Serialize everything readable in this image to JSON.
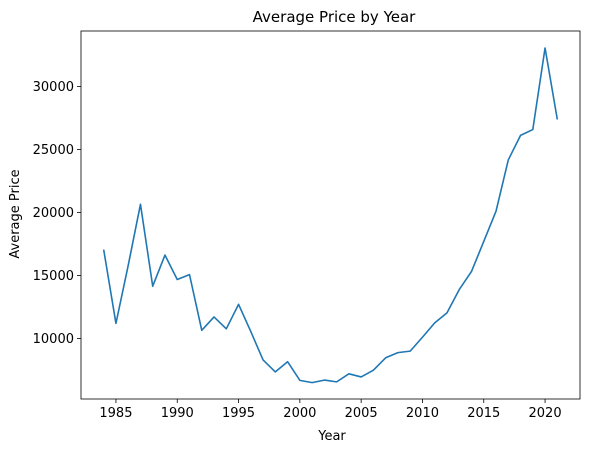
{
  "chart_data": {
    "type": "line",
    "title": "Average Price by Year",
    "xlabel": "Year",
    "ylabel": "Average Price",
    "xlim": [
      1982.15,
      2022.85
    ],
    "ylim": [
      5200,
      34400
    ],
    "xticks": [
      1985,
      1990,
      1995,
      2000,
      2005,
      2010,
      2015,
      2020
    ],
    "yticks": [
      10000,
      15000,
      20000,
      25000,
      30000
    ],
    "grid": false,
    "legend": "none",
    "line_color": "#1f77b4",
    "series": [
      {
        "x": [
          1984,
          1985,
          1986,
          1987,
          1988,
          1989,
          1990,
          1991,
          1992,
          1993,
          1994,
          1995,
          1996,
          1997,
          1998,
          1999,
          2000,
          2001,
          2002,
          2003,
          2004,
          2005,
          2006,
          2007,
          2008,
          2009,
          2010,
          2011,
          2012,
          2013,
          2014,
          2015,
          2016,
          2017,
          2018,
          2019,
          2020,
          2021
        ],
        "values": [
          17050,
          11200,
          15800,
          20650,
          14150,
          16620,
          14680,
          15070,
          10650,
          11710,
          10770,
          12710,
          10550,
          8300,
          7350,
          8160,
          6680,
          6500,
          6700,
          6560,
          7200,
          6950,
          7490,
          8470,
          8880,
          9000,
          10100,
          11240,
          12030,
          13880,
          15320,
          17700,
          20100,
          24170,
          26120,
          26580,
          33050,
          27380
        ]
      }
    ]
  }
}
